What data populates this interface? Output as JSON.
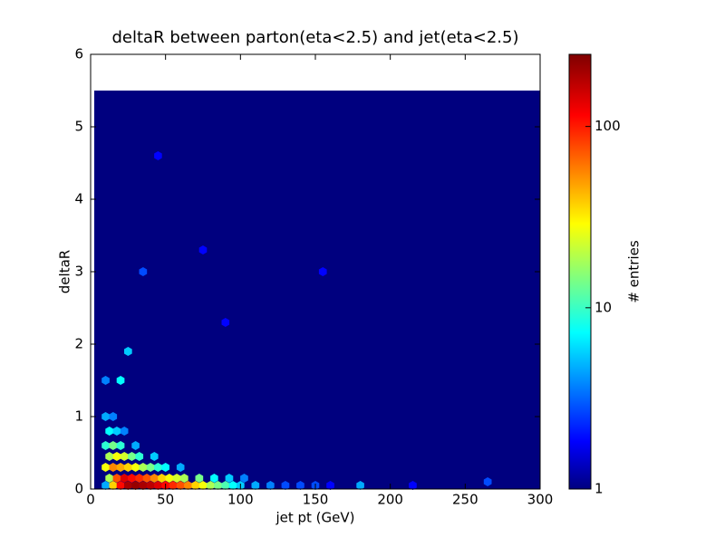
{
  "chart_data": {
    "type": "hexbin",
    "title": "deltaR between parton(eta<2.5) and jet(eta<2.5)",
    "x_label": "jet pt (GeV)",
    "y_label": "deltaR",
    "xlim": [
      0,
      300
    ],
    "ylim": [
      0,
      6
    ],
    "xticks": [
      0,
      50,
      100,
      150,
      200,
      250,
      300
    ],
    "yticks": [
      0,
      1,
      2,
      3,
      4,
      5,
      6
    ],
    "colormap": "jet",
    "color_scale": "log",
    "clim": [
      1,
      250
    ],
    "cticks": [
      1,
      10,
      100
    ],
    "colorbar_label": "# entries",
    "cells": [
      [
        10,
        0.05,
        5
      ],
      [
        15,
        0.05,
        40
      ],
      [
        20,
        0.05,
        120
      ],
      [
        25,
        0.05,
        200
      ],
      [
        30,
        0.05,
        220
      ],
      [
        35,
        0.05,
        200
      ],
      [
        40,
        0.05,
        180
      ],
      [
        45,
        0.05,
        150
      ],
      [
        50,
        0.05,
        120
      ],
      [
        55,
        0.05,
        100
      ],
      [
        60,
        0.05,
        80
      ],
      [
        65,
        0.05,
        60
      ],
      [
        70,
        0.05,
        40
      ],
      [
        75,
        0.05,
        30
      ],
      [
        80,
        0.05,
        20
      ],
      [
        85,
        0.05,
        15
      ],
      [
        90,
        0.05,
        12
      ],
      [
        95,
        0.05,
        8
      ],
      [
        100,
        0.05,
        6
      ],
      [
        110,
        0.05,
        5
      ],
      [
        120,
        0.05,
        4
      ],
      [
        130,
        0.05,
        3
      ],
      [
        140,
        0.05,
        3
      ],
      [
        150,
        0.05,
        3
      ],
      [
        160,
        0.05,
        2
      ],
      [
        180,
        0.05,
        5
      ],
      [
        215,
        0.05,
        2
      ],
      [
        265,
        0.1,
        3
      ],
      [
        12.5,
        0.15,
        20
      ],
      [
        17.5,
        0.15,
        80
      ],
      [
        22.5,
        0.15,
        150
      ],
      [
        27.5,
        0.15,
        120
      ],
      [
        32.5,
        0.15,
        100
      ],
      [
        37.5,
        0.15,
        80
      ],
      [
        42.5,
        0.15,
        60
      ],
      [
        47.5,
        0.15,
        40
      ],
      [
        52.5,
        0.15,
        30
      ],
      [
        57.5,
        0.15,
        25
      ],
      [
        62.5,
        0.15,
        20
      ],
      [
        72.5,
        0.15,
        15
      ],
      [
        82.5,
        0.15,
        8
      ],
      [
        92.5,
        0.15,
        6
      ],
      [
        102.5,
        0.15,
        4
      ],
      [
        10,
        0.3,
        30
      ],
      [
        15,
        0.3,
        60
      ],
      [
        20,
        0.3,
        50
      ],
      [
        25,
        0.3,
        40
      ],
      [
        30,
        0.3,
        30
      ],
      [
        35,
        0.3,
        20
      ],
      [
        40,
        0.3,
        15
      ],
      [
        45,
        0.3,
        10
      ],
      [
        50,
        0.3,
        8
      ],
      [
        60,
        0.3,
        5
      ],
      [
        12.5,
        0.45,
        20
      ],
      [
        17.5,
        0.45,
        30
      ],
      [
        22.5,
        0.45,
        25
      ],
      [
        27.5,
        0.45,
        15
      ],
      [
        32.5,
        0.45,
        10
      ],
      [
        42.5,
        0.45,
        6
      ],
      [
        10,
        0.6,
        10
      ],
      [
        15,
        0.6,
        15
      ],
      [
        20,
        0.6,
        10
      ],
      [
        30,
        0.6,
        5
      ],
      [
        12.5,
        0.8,
        8
      ],
      [
        17.5,
        0.8,
        6
      ],
      [
        22.5,
        0.8,
        4
      ],
      [
        10,
        1.0,
        5
      ],
      [
        15,
        1.0,
        4
      ],
      [
        10,
        1.5,
        4
      ],
      [
        20,
        1.5,
        8
      ],
      [
        25,
        1.9,
        6
      ],
      [
        155,
        3.0,
        2
      ],
      [
        45,
        4.6,
        2
      ],
      [
        75,
        3.3,
        2
      ],
      [
        90,
        2.3,
        2
      ],
      [
        35,
        3.0,
        3
      ]
    ]
  }
}
